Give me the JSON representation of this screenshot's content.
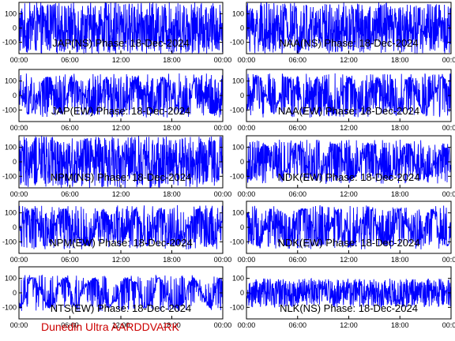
{
  "footer": {
    "text": "Dunedin Ultra AARDDVARK",
    "color": "#cc0000"
  },
  "style": {
    "series_color": "#0000ff",
    "axis_color": "#000000",
    "background": "#ffffff"
  },
  "chart_data": [
    {
      "type": "line",
      "title": "JAP(NS) Phase: 18-Dec-2024",
      "x_ticks": [
        "00:00",
        "06:00",
        "12:00",
        "18:00",
        "00:00"
      ],
      "y_ticks": [
        "100",
        "0",
        "-100"
      ],
      "ylim": [
        -180,
        180
      ],
      "density": 0.95,
      "amplitude": 1.0
    },
    {
      "type": "line",
      "title": "NAA(NS) Phase: 18-Dec-2024",
      "x_ticks": [
        "00:00",
        "06:00",
        "12:00",
        "18:00",
        "00:00"
      ],
      "y_ticks": [
        "100",
        "0",
        "-100"
      ],
      "ylim": [
        -180,
        180
      ],
      "density": 0.95,
      "amplitude": 1.0
    },
    {
      "type": "line",
      "title": "JAP(EW) Phase: 18-Dec-2024",
      "x_ticks": [
        "00:00",
        "06:00",
        "12:00",
        "18:00",
        "00:00"
      ],
      "y_ticks": [
        "100",
        "0",
        "-100"
      ],
      "ylim": [
        -180,
        180
      ],
      "density": 0.6,
      "amplitude": 0.85
    },
    {
      "type": "line",
      "title": "NAA(EW) Phase: 18-Dec-2024",
      "x_ticks": [
        "00:00",
        "06:00",
        "12:00",
        "18:00",
        "00:00"
      ],
      "y_ticks": [
        "100",
        "0",
        "-100"
      ],
      "ylim": [
        -180,
        180
      ],
      "density": 0.6,
      "amplitude": 0.85
    },
    {
      "type": "line",
      "title": "NPM(NS) Phase: 18-Dec-2024",
      "x_ticks": [
        "00:00",
        "06:00",
        "12:00",
        "18:00",
        "00:00"
      ],
      "y_ticks": [
        "100",
        "0",
        "-100"
      ],
      "ylim": [
        -180,
        180
      ],
      "density": 0.97,
      "amplitude": 1.0
    },
    {
      "type": "line",
      "title": "NDK(EW) Phase: 18-Dec-2024",
      "x_ticks": [
        "00:00",
        "06:00",
        "12:00",
        "18:00",
        "00:00"
      ],
      "y_ticks": [
        "100",
        "0",
        "-100"
      ],
      "ylim": [
        -180,
        180
      ],
      "density": 0.6,
      "amplitude": 0.85
    },
    {
      "type": "line",
      "title": "NPM(EW) Phase: 18-Dec-2024",
      "x_ticks": [
        "00:00",
        "06:00",
        "12:00",
        "18:00",
        "00:00"
      ],
      "y_ticks": [
        "100",
        "0",
        "-100"
      ],
      "ylim": [
        -180,
        180
      ],
      "density": 0.6,
      "amplitude": 0.85
    },
    {
      "type": "line",
      "title": "NDK(EW) Phase: 18-Dec-2024",
      "x_ticks": [
        "00:00",
        "06:00",
        "12:00",
        "18:00",
        "00:00"
      ],
      "y_ticks": [
        "100",
        "0",
        "-100"
      ],
      "ylim": [
        -180,
        180
      ],
      "density": 0.6,
      "amplitude": 0.85
    },
    {
      "type": "line",
      "title": "NTS(EW) Phase: 18-Dec-2024",
      "x_ticks": [
        "00:00",
        "06:00",
        "12:00",
        "18:00",
        "00:00"
      ],
      "y_ticks": [
        "100",
        "0",
        "-100"
      ],
      "ylim": [
        -180,
        180
      ],
      "density": 0.45,
      "amplitude": 0.7
    },
    {
      "type": "line",
      "title": "NLK(NS) Phase: 18-Dec-2024",
      "x_ticks": [
        "00:00",
        "06:00",
        "12:00",
        "18:00",
        "00:00"
      ],
      "y_ticks": [
        "100",
        "0",
        "-100"
      ],
      "ylim": [
        -180,
        180
      ],
      "density": 0.97,
      "amplitude": 0.55
    }
  ]
}
